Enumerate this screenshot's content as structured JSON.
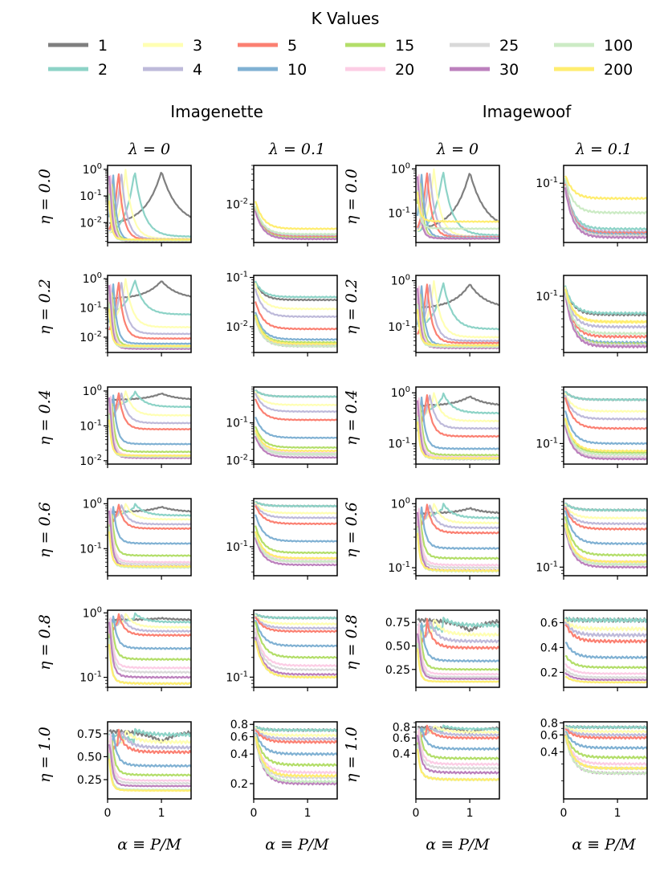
{
  "legend": {
    "title": "K Values",
    "entries": [
      {
        "label": "1",
        "color": "#7f7f7f"
      },
      {
        "label": "3",
        "color": "#ffffb3"
      },
      {
        "label": "5",
        "color": "#fb8072"
      },
      {
        "label": "15",
        "color": "#b3de69"
      },
      {
        "label": "25",
        "color": "#d9d9d9"
      },
      {
        "label": "100",
        "color": "#ccebc5"
      },
      {
        "label": "2",
        "color": "#8dd3c7"
      },
      {
        "label": "4",
        "color": "#bebada"
      },
      {
        "label": "10",
        "color": "#80b1d3"
      },
      {
        "label": "20",
        "color": "#fccde5"
      },
      {
        "label": "30",
        "color": "#bc80bd"
      },
      {
        "label": "200",
        "color": "#ffed6f"
      }
    ]
  },
  "dataset_titles": [
    "Imagenette",
    "Imagewoof"
  ],
  "column_titles": [
    "λ = 0",
    "λ = 0.1",
    "λ = 0",
    "λ = 0.1"
  ],
  "row_labels": [
    "η = 0.0",
    "η = 0.2",
    "η = 0.4",
    "η = 0.6",
    "η = 0.8",
    "η = 1.0"
  ],
  "xlabel": "α ≡ P/M",
  "x_ticks": [
    "0",
    "1"
  ],
  "chart_data": {
    "type": "line",
    "description_of_axes": "x: alpha = P/M from 0 to 1.5; y: error (log scale in most panels)",
    "xlim": [
      0,
      1.55
    ],
    "series_k": [
      1,
      2,
      3,
      4,
      5,
      10,
      15,
      20,
      25,
      30,
      100,
      200
    ],
    "panels": [
      {
        "dataset": "Imagenette",
        "lambda": 0,
        "eta": 0.0,
        "yscale": "log",
        "ylim": [
          0.0018,
          1.4
        ],
        "yticks": [
          "10^0",
          "10^-1",
          "10^-2"
        ],
        "peaks": true,
        "floor": [
          0.008,
          0.003,
          0.0025,
          0.0024,
          0.0023,
          0.0021,
          0.0021,
          0.002,
          0.002,
          0.002,
          0.0021,
          0.0023
        ]
      },
      {
        "dataset": "Imagenette",
        "lambda": 0.1,
        "eta": 0.0,
        "yscale": "log",
        "ylim": [
          0.0017,
          0.06
        ],
        "yticks": [
          "10^-2"
        ],
        "peaks": false,
        "floor": [
          0.0021,
          0.0024,
          0.0022,
          0.0023,
          0.0022,
          0.0021,
          0.0021,
          0.002,
          0.002,
          0.002,
          0.0025,
          0.0032
        ]
      },
      {
        "dataset": "Imagewoof",
        "lambda": 0,
        "eta": 0.0,
        "yscale": "log",
        "ylim": [
          0.022,
          1.2
        ],
        "yticks": [
          "10^0",
          "10^-1"
        ],
        "peaks": true,
        "floor": [
          0.04,
          0.032,
          0.03,
          0.03,
          0.029,
          0.028,
          0.027,
          0.027,
          0.027,
          0.027,
          0.045,
          0.065
        ]
      },
      {
        "dataset": "Imagewoof",
        "lambda": 0.1,
        "eta": 0.0,
        "yscale": "log",
        "ylim": [
          0.021,
          0.16
        ],
        "yticks": [
          "10^-1"
        ],
        "peaks": false,
        "floor": [
          0.026,
          0.03,
          0.027,
          0.028,
          0.027,
          0.026,
          0.025,
          0.025,
          0.025,
          0.024,
          0.046,
          0.067
        ]
      },
      {
        "dataset": "Imagenette",
        "lambda": 0,
        "eta": 0.2,
        "yscale": "log",
        "ylim": [
          0.003,
          1.3
        ],
        "yticks": [
          "10^0",
          "10^-1",
          "10^-2"
        ],
        "peaks": true,
        "floor": [
          0.2,
          0.06,
          0.022,
          0.013,
          0.009,
          0.006,
          0.005,
          0.0045,
          0.0045,
          0.004,
          0.0045,
          0.005
        ]
      },
      {
        "dataset": "Imagenette",
        "lambda": 0.1,
        "eta": 0.2,
        "yscale": "log",
        "ylim": [
          0.003,
          0.11
        ],
        "yticks": [
          "10^-1",
          "10^-2"
        ],
        "peaks": false,
        "floor": [
          0.035,
          0.04,
          0.023,
          0.016,
          0.009,
          0.0055,
          0.0048,
          0.0043,
          0.0043,
          0.004,
          0.004,
          0.0045
        ]
      },
      {
        "dataset": "Imagewoof",
        "lambda": 0,
        "eta": 0.2,
        "yscale": "log",
        "ylim": [
          0.028,
          1.3
        ],
        "yticks": [
          "10^0",
          "10^-1"
        ],
        "peaks": true,
        "floor": [
          0.25,
          0.09,
          0.06,
          0.05,
          0.045,
          0.04,
          0.038,
          0.037,
          0.036,
          0.035,
          0.037,
          0.04
        ]
      },
      {
        "dataset": "Imagewoof",
        "lambda": 0.1,
        "eta": 0.2,
        "yscale": "log",
        "ylim": [
          0.028,
          0.16
        ],
        "yticks": [
          "10^-1"
        ],
        "peaks": false,
        "floor": [
          0.066,
          0.068,
          0.056,
          0.05,
          0.04,
          0.035,
          0.034,
          0.033,
          0.033,
          0.032,
          0.043,
          0.056
        ]
      },
      {
        "dataset": "Imagenette",
        "lambda": 0,
        "eta": 0.4,
        "yscale": "log",
        "ylim": [
          0.008,
          1.3
        ],
        "yticks": [
          "10^0",
          "10^-1",
          "10^-2"
        ],
        "peaks": true,
        "floor": [
          0.55,
          0.35,
          0.2,
          0.12,
          0.08,
          0.03,
          0.018,
          0.014,
          0.013,
          0.012,
          0.013,
          0.014
        ]
      },
      {
        "dataset": "Imagenette",
        "lambda": 0.1,
        "eta": 0.4,
        "yscale": "log",
        "ylim": [
          0.008,
          0.9
        ],
        "yticks": [
          "10^-1",
          "10^-2"
        ],
        "peaks": false,
        "floor": [
          0.5,
          0.5,
          0.3,
          0.2,
          0.12,
          0.04,
          0.022,
          0.016,
          0.014,
          0.012,
          0.015,
          0.018
        ]
      },
      {
        "dataset": "Imagewoof",
        "lambda": 0,
        "eta": 0.4,
        "yscale": "log",
        "ylim": [
          0.04,
          1.3
        ],
        "yticks": [
          "10^0",
          "10^-1"
        ],
        "peaks": true,
        "floor": [
          0.55,
          0.4,
          0.28,
          0.2,
          0.14,
          0.08,
          0.06,
          0.055,
          0.052,
          0.05,
          0.05,
          0.052
        ]
      },
      {
        "dataset": "Imagewoof",
        "lambda": 0.1,
        "eta": 0.4,
        "yscale": "log",
        "ylim": [
          0.045,
          0.9
        ],
        "yticks": [
          "10^-1"
        ],
        "peaks": false,
        "floor": [
          0.55,
          0.55,
          0.35,
          0.26,
          0.18,
          0.1,
          0.07,
          0.06,
          0.058,
          0.055,
          0.065,
          0.075
        ]
      },
      {
        "dataset": "Imagenette",
        "lambda": 0,
        "eta": 0.6,
        "yscale": "log",
        "ylim": [
          0.025,
          1.3
        ],
        "yticks": [
          "10^0",
          "10^-1"
        ],
        "peaks": true,
        "floor": [
          0.65,
          0.55,
          0.45,
          0.35,
          0.28,
          0.13,
          0.07,
          0.05,
          0.045,
          0.04,
          0.038,
          0.04
        ]
      },
      {
        "dataset": "Imagenette",
        "lambda": 0.1,
        "eta": 0.6,
        "yscale": "log",
        "ylim": [
          0.025,
          1.0
        ],
        "yticks": [
          "10^-1"
        ],
        "peaks": false,
        "floor": [
          0.7,
          0.7,
          0.5,
          0.4,
          0.3,
          0.13,
          0.075,
          0.055,
          0.048,
          0.042,
          0.05,
          0.058
        ]
      },
      {
        "dataset": "Imagewoof",
        "lambda": 0,
        "eta": 0.6,
        "yscale": "log",
        "ylim": [
          0.075,
          1.2
        ],
        "yticks": [
          "10^0",
          "10^-1"
        ],
        "peaks": true,
        "floor": [
          0.7,
          0.6,
          0.5,
          0.42,
          0.35,
          0.2,
          0.14,
          0.11,
          0.1,
          0.09,
          0.088,
          0.09
        ]
      },
      {
        "dataset": "Imagewoof",
        "lambda": 0.1,
        "eta": 0.6,
        "yscale": "log",
        "ylim": [
          0.075,
          1.0
        ],
        "yticks": [
          "10^-1"
        ],
        "peaks": false,
        "floor": [
          0.68,
          0.68,
          0.52,
          0.43,
          0.36,
          0.22,
          0.15,
          0.12,
          0.11,
          0.1,
          0.11,
          0.12
        ]
      },
      {
        "dataset": "Imagenette",
        "lambda": 0,
        "eta": 0.8,
        "yscale": "log",
        "ylim": [
          0.07,
          1.1
        ],
        "yticks": [
          "10^0",
          "10^-1"
        ],
        "peaks": true,
        "floor": [
          0.78,
          0.72,
          0.6,
          0.52,
          0.45,
          0.28,
          0.19,
          0.14,
          0.12,
          0.1,
          0.08,
          0.08
        ]
      },
      {
        "dataset": "Imagenette",
        "lambda": 0.1,
        "eta": 0.8,
        "yscale": "log",
        "ylim": [
          0.07,
          1.05
        ],
        "yticks": [
          "10^-1"
        ],
        "peaks": false,
        "floor": [
          0.8,
          0.8,
          0.65,
          0.56,
          0.5,
          0.3,
          0.2,
          0.15,
          0.13,
          0.11,
          0.1,
          0.1
        ]
      },
      {
        "dataset": "Imagewoof",
        "lambda": 0,
        "eta": 0.8,
        "yscale": "linear",
        "ylim": [
          0.06,
          0.88
        ],
        "yticks": [
          "0.75",
          "0.50",
          "0.25"
        ],
        "peaks": true,
        "floor": [
          0.78,
          0.72,
          0.62,
          0.55,
          0.48,
          0.34,
          0.25,
          0.2,
          0.17,
          0.15,
          0.12,
          0.12
        ]
      },
      {
        "dataset": "Imagewoof",
        "lambda": 0.1,
        "eta": 0.8,
        "yscale": "linear",
        "ylim": [
          0.08,
          0.7
        ],
        "yticks": [
          "0.6",
          "0.4",
          "0.2"
        ],
        "peaks": false,
        "floor": [
          0.62,
          0.62,
          0.55,
          0.5,
          0.45,
          0.32,
          0.24,
          0.19,
          0.16,
          0.14,
          0.12,
          0.12
        ]
      },
      {
        "dataset": "Imagenette",
        "lambda": 0,
        "eta": 1.0,
        "yscale": "linear",
        "ylim": [
          0.04,
          0.88
        ],
        "yticks": [
          "0.75",
          "0.50",
          "0.25"
        ],
        "peaks": true,
        "floor": [
          0.78,
          0.74,
          0.66,
          0.6,
          0.55,
          0.4,
          0.3,
          0.24,
          0.21,
          0.18,
          0.14,
          0.13
        ]
      },
      {
        "dataset": "Imagenette",
        "lambda": 0.1,
        "eta": 1.0,
        "yscale": "log",
        "ylim": [
          0.14,
          0.85
        ],
        "yticks": [
          "0.8",
          "0.6",
          "0.4",
          "0.2"
        ],
        "peaks": false,
        "floor": [
          0.7,
          0.7,
          0.62,
          0.57,
          0.53,
          0.4,
          0.31,
          0.26,
          0.23,
          0.2,
          0.21,
          0.24
        ]
      },
      {
        "dataset": "Imagewoof",
        "lambda": 0,
        "eta": 1.0,
        "yscale": "log",
        "ylim": [
          0.12,
          0.92
        ],
        "yticks": [
          "0.8",
          "0.6",
          "0.4"
        ],
        "peaks": true,
        "floor": [
          0.8,
          0.76,
          0.7,
          0.65,
          0.6,
          0.45,
          0.35,
          0.3,
          0.27,
          0.24,
          0.2,
          0.2
        ]
      },
      {
        "dataset": "Imagewoof",
        "lambda": 0.1,
        "eta": 1.0,
        "yscale": "log",
        "ylim": [
          0.13,
          0.82
        ],
        "yticks": [
          "0.8",
          "0.6",
          "0.4"
        ],
        "peaks": false,
        "floor": [
          0.72,
          0.72,
          0.65,
          0.6,
          0.56,
          0.44,
          0.35,
          0.3,
          0.27,
          0.24,
          0.24,
          0.27
        ]
      }
    ]
  }
}
